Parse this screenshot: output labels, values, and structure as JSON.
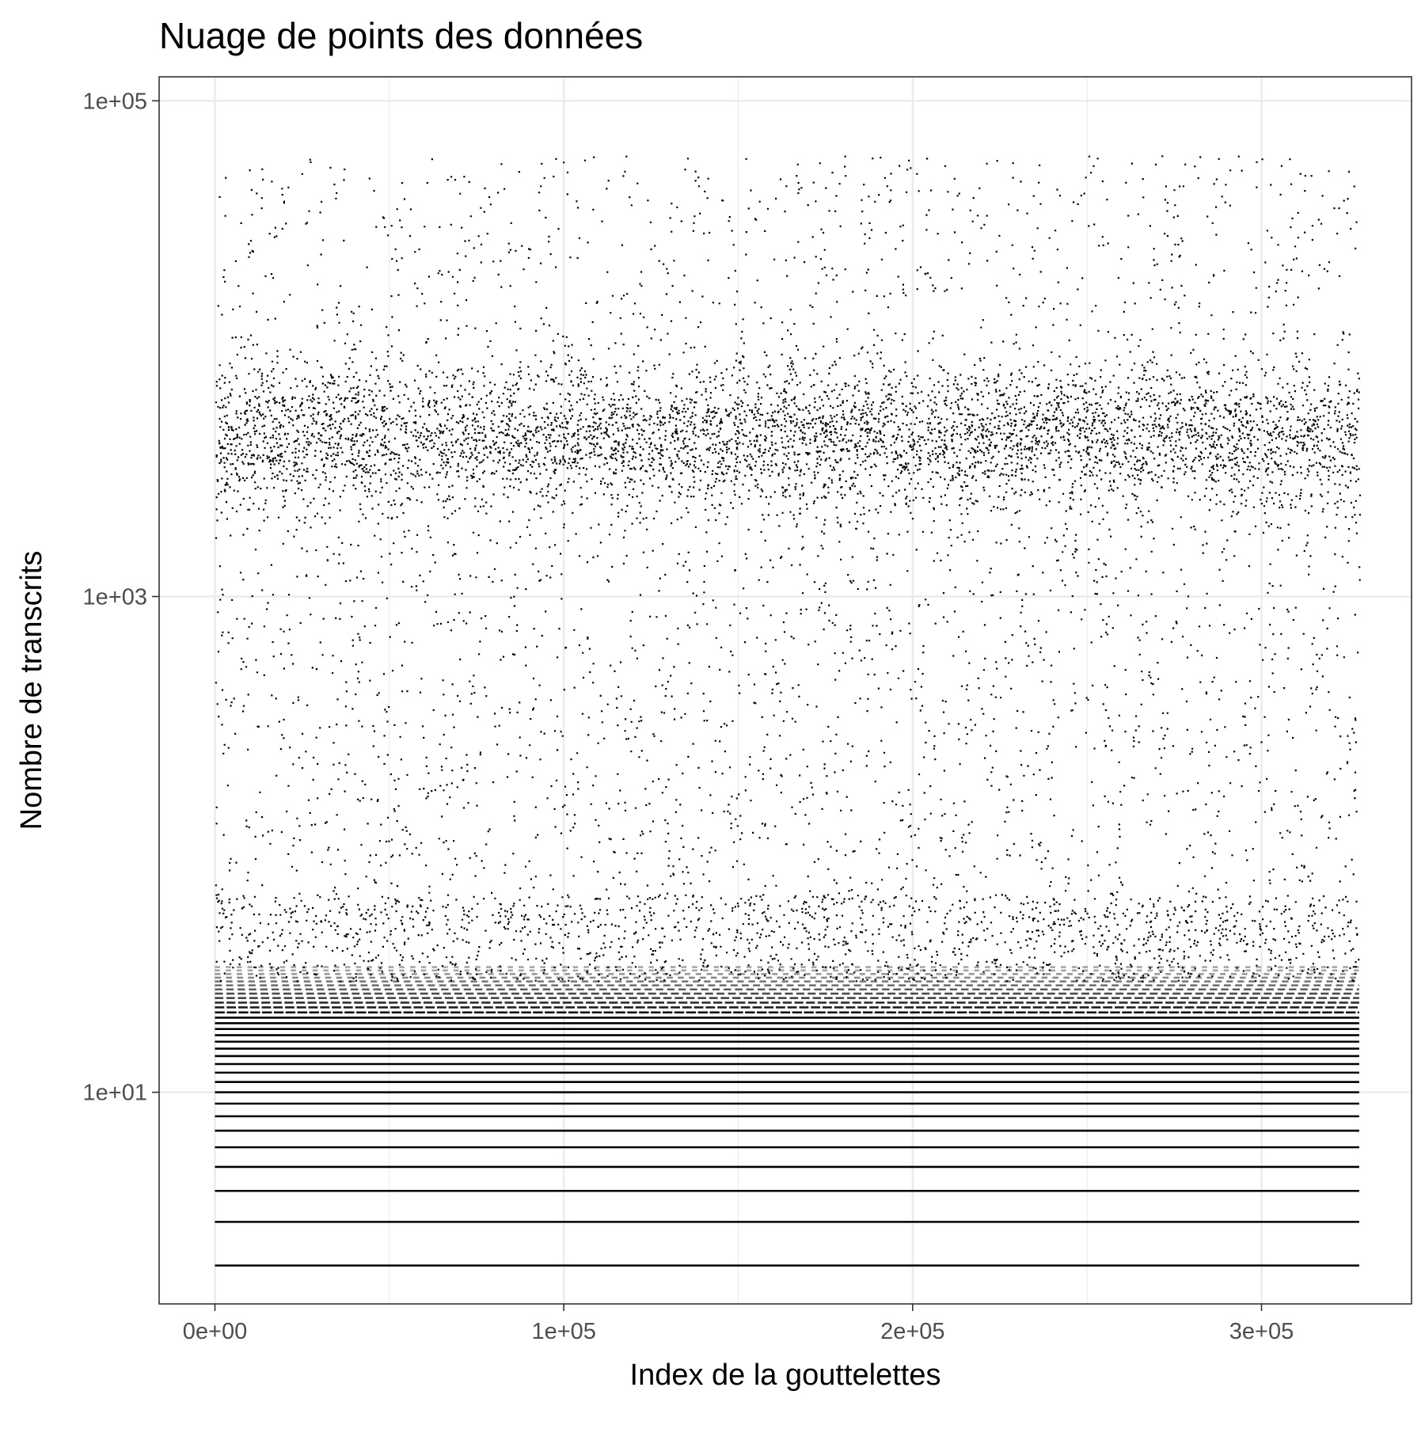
{
  "chart_data": {
    "type": "scatter",
    "title": "Nuage de points des données",
    "xlabel": "Index de la gouttelettes",
    "ylabel": "Nombre de transcrits",
    "x_scale": "linear",
    "y_scale": "log10",
    "xlim": [
      -16000,
      343000
    ],
    "ylim": [
      1.4,
      125000
    ],
    "x_ticks": [
      {
        "value": 0,
        "label": "0e+00"
      },
      {
        "value": 100000,
        "label": "1e+05"
      },
      {
        "value": 200000,
        "label": "2e+05"
      },
      {
        "value": 300000,
        "label": "3e+05"
      }
    ],
    "y_ticks": [
      {
        "value": 10,
        "label": "1e+01"
      },
      {
        "value": 1000,
        "label": "1e+03"
      },
      {
        "value": 100000,
        "label": "1e+05"
      }
    ],
    "grid": true,
    "legend": "none",
    "point_color": "#000000",
    "x_range_of_points": [
      0,
      328000
    ],
    "discrete_levels": [
      2,
      3,
      4,
      5,
      6,
      7,
      8,
      9,
      10,
      11,
      12,
      13,
      14,
      15,
      16,
      17,
      18,
      19,
      20,
      21,
      22,
      23,
      24,
      25,
      26,
      27,
      28,
      29,
      30,
      31,
      32
    ],
    "density_bands": [
      {
        "name": "dense-band",
        "log10_center": 3.65,
        "log10_spread": 0.14,
        "points_shown": 5200
      },
      {
        "name": "upper-sparse",
        "log10_range": [
          3.85,
          4.78
        ],
        "points_shown": 900
      },
      {
        "name": "middle-sparse",
        "log10_range": [
          1.6,
          3.45
        ],
        "points_shown": 2300
      },
      {
        "name": "low-transition",
        "log10_range": [
          1.45,
          1.8
        ],
        "points_shown": 1400
      }
    ]
  }
}
